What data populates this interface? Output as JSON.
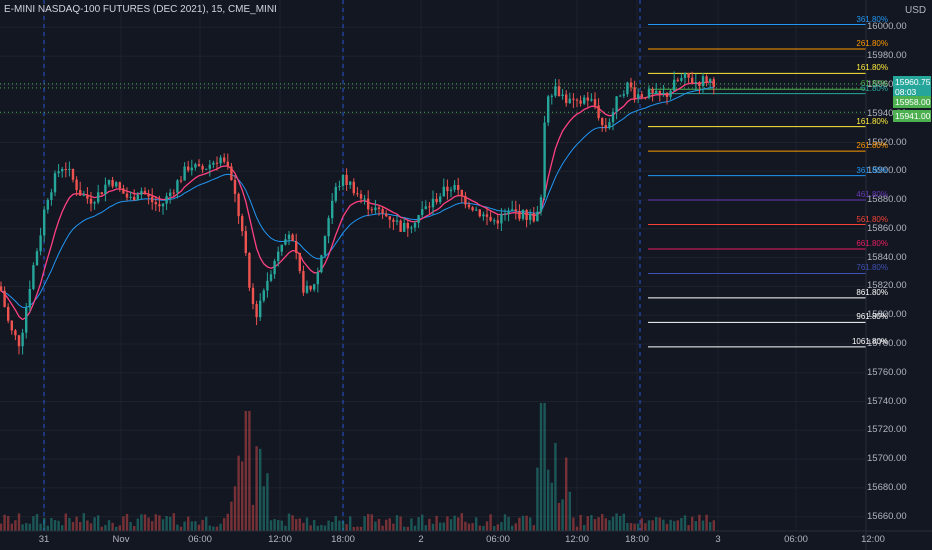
{
  "header": {
    "title": "E-MINI NASDAQ-100 FUTURES (DEC 2021), 15, CME_MINI",
    "currency": "USD"
  },
  "chart_data": {
    "type": "candlestick",
    "symbol": "E-MINI NASDAQ-100 FUTURES (DEC 2021)",
    "interval": "15",
    "exchange": "CME_MINI",
    "ylim": [
      15650,
      16010
    ],
    "y_ticks": [
      "16000.00",
      "15980.00",
      "15960.00",
      "15940.00",
      "15920.00",
      "15900.00",
      "15880.00",
      "15860.00",
      "15840.00",
      "15820.00",
      "15800.00",
      "15780.00",
      "15760.00",
      "15740.00",
      "15720.00",
      "15700.00",
      "15680.00",
      "15660.00"
    ],
    "x_ticks": [
      "31",
      "Nov",
      "06:00",
      "12:00",
      "18:00",
      "2",
      "06:00",
      "12:00",
      "18:00",
      "3",
      "06:00",
      "12:00"
    ],
    "price_badges": [
      {
        "text": "15960.75",
        "sub": "08:03",
        "color": "#26a69a"
      },
      {
        "text": "15958.00",
        "color": "#4caf50"
      },
      {
        "text": "15941.00",
        "color": "#4caf50"
      }
    ],
    "fib_levels": [
      {
        "label": "361.80%",
        "price": 16002,
        "color": "#2196f3"
      },
      {
        "label": "261.80%",
        "price": 15985,
        "color": "#ff9800"
      },
      {
        "label": "161.80%",
        "price": 15968,
        "color": "#ffeb3b"
      },
      {
        "label": "61.80%",
        "price": 15957,
        "color": "#4caf50"
      },
      {
        "label": "61.80%",
        "price": 15954,
        "color": "#26a69a"
      },
      {
        "label": "161.80%",
        "price": 15931,
        "color": "#ffeb3b"
      },
      {
        "label": "261.80%",
        "price": 15914,
        "color": "#ff9800"
      },
      {
        "label": "361.80%",
        "price": 15897,
        "color": "#2196f3"
      },
      {
        "label": "461.80%",
        "price": 15880,
        "color": "#673ab7"
      },
      {
        "label": "561.80%",
        "price": 15863,
        "color": "#f44336"
      },
      {
        "label": "661.80%",
        "price": 15846,
        "color": "#e91e63"
      },
      {
        "label": "761.80%",
        "price": 15829,
        "color": "#3f51b5"
      },
      {
        "label": "861.80%",
        "price": 15812,
        "color": "#ffffff"
      },
      {
        "label": "961.80%",
        "price": 15795,
        "color": "#ffffff"
      },
      {
        "label": "1061.80%",
        "price": 15778,
        "color": "#ffffff"
      }
    ],
    "colors": {
      "up": "#26a69a",
      "down": "#ef5350",
      "ma_fast": "#ff4081",
      "ma_slow": "#2196f3",
      "grid": "#1e222d",
      "session": "#2962ff"
    }
  }
}
